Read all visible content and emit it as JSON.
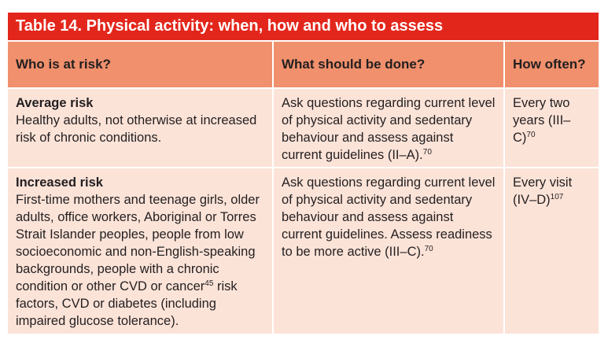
{
  "title": "Table 14. Physical activity: when, how and who to assess",
  "colors": {
    "title_bar": "#e3261b",
    "header": "#f0906c",
    "cell": "#fce3d8"
  },
  "headers": [
    "Who is at risk?",
    "What should be done?",
    "How often?"
  ],
  "rows": [
    {
      "risk_title": "Average risk",
      "risk_desc": "Healthy adults, not otherwise at increased risk of chronic conditions.",
      "action": "Ask questions regarding current level of physical activity and sedentary behaviour and assess against current guidelines (II–A).",
      "action_ref": "70",
      "frequency": "Every two years (III–C)",
      "frequency_ref": "70"
    },
    {
      "risk_title": "Increased risk",
      "risk_desc_a": "First-time mothers and teenage girls, older adults, office workers, Aboriginal or Torres Strait Islander peoples, people from low socioeconomic and non-English-speaking backgrounds, people with a chronic condition or other CVD or cancer",
      "risk_desc_ref": "45",
      "risk_desc_b": " risk factors, CVD or diabetes (including impaired glucose tolerance).",
      "action": "Ask questions regarding current level of physical activity and sedentary behaviour and assess against current guidelines. Assess readiness to be more active (III–C).",
      "action_ref": "70",
      "frequency": "Every visit (IV–D)",
      "frequency_ref": "107"
    }
  ]
}
